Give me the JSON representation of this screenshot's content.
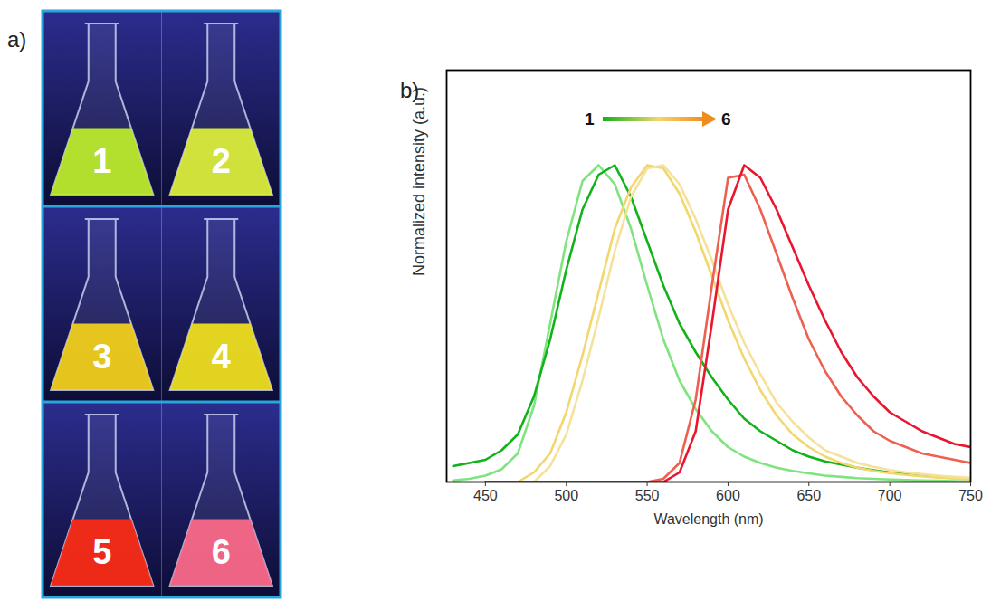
{
  "panel_a": {
    "label": "a)",
    "samples": [
      {
        "label": "1",
        "color": "#bff02a"
      },
      {
        "label": "2",
        "color": "#e0f23a"
      },
      {
        "label": "3",
        "color": "#f7d21a"
      },
      {
        "label": "4",
        "color": "#f3e31c"
      },
      {
        "label": "5",
        "color": "#ff2a14"
      },
      {
        "label": "6",
        "color": "#ff6a8a"
      }
    ]
  },
  "chart_data": {
    "type": "line",
    "panel_label": "b)",
    "annotation": {
      "from": "1",
      "to": "6"
    },
    "xlabel": "Wavelength (nm)",
    "ylabel": "Normalized intensity (a.u.)",
    "x": [
      430,
      440,
      450,
      460,
      470,
      480,
      490,
      500,
      510,
      520,
      530,
      540,
      550,
      560,
      570,
      580,
      590,
      600,
      610,
      620,
      630,
      640,
      650,
      660,
      670,
      680,
      690,
      700,
      710,
      720,
      730,
      740,
      750
    ],
    "series": [
      {
        "color": "#7fe37f",
        "values": [
          0.005,
          0.01,
          0.02,
          0.04,
          0.09,
          0.24,
          0.5,
          0.76,
          0.95,
          1.0,
          0.94,
          0.8,
          0.62,
          0.45,
          0.32,
          0.23,
          0.16,
          0.11,
          0.08,
          0.06,
          0.045,
          0.035,
          0.027,
          0.02,
          0.016,
          0.012,
          0.01,
          0.008,
          0.006,
          0.005,
          0.004,
          0.003,
          0.002
        ]
      },
      {
        "color": "#12b21a",
        "values": [
          0.05,
          0.06,
          0.07,
          0.1,
          0.15,
          0.27,
          0.45,
          0.67,
          0.86,
          0.97,
          1.0,
          0.9,
          0.76,
          0.62,
          0.5,
          0.41,
          0.33,
          0.26,
          0.2,
          0.16,
          0.13,
          0.1,
          0.08,
          0.065,
          0.055,
          0.045,
          0.037,
          0.03,
          0.025,
          0.02,
          0.016,
          0.013,
          0.01
        ]
      },
      {
        "color": "#f2d66e",
        "values": [
          null,
          null,
          null,
          null,
          0.0,
          0.03,
          0.09,
          0.22,
          0.4,
          0.6,
          0.8,
          0.93,
          1.0,
          0.99,
          0.91,
          0.79,
          0.65,
          0.51,
          0.39,
          0.29,
          0.21,
          0.15,
          0.11,
          0.08,
          0.06,
          0.045,
          0.035,
          0.028,
          0.022,
          0.018,
          0.014,
          0.011,
          0.009
        ]
      },
      {
        "color": "#f5e29a",
        "values": [
          null,
          null,
          null,
          null,
          null,
          0.0,
          0.05,
          0.15,
          0.32,
          0.52,
          0.73,
          0.9,
          0.99,
          1.0,
          0.94,
          0.83,
          0.7,
          0.56,
          0.44,
          0.34,
          0.25,
          0.19,
          0.14,
          0.1,
          0.08,
          0.06,
          0.048,
          0.038,
          0.03,
          0.025,
          0.02,
          0.016,
          0.013
        ]
      },
      {
        "color": "#ee6050",
        "values": [
          null,
          null,
          0.0,
          0.0,
          0.0,
          0.0,
          0.0,
          0.0,
          0.0,
          0.0,
          0.0,
          0.0,
          0.0,
          0.01,
          0.06,
          0.26,
          0.62,
          0.96,
          0.97,
          0.86,
          0.72,
          0.58,
          0.45,
          0.35,
          0.27,
          0.21,
          0.16,
          0.13,
          0.11,
          0.09,
          0.08,
          0.07,
          0.06
        ]
      },
      {
        "color": "#e8162e",
        "values": [
          null,
          null,
          0.0,
          0.0,
          0.0,
          0.0,
          0.0,
          0.0,
          0.0,
          0.0,
          0.0,
          0.0,
          0.0,
          0.0,
          0.03,
          0.16,
          0.5,
          0.86,
          1.0,
          0.96,
          0.86,
          0.74,
          0.62,
          0.51,
          0.41,
          0.33,
          0.27,
          0.22,
          0.19,
          0.16,
          0.14,
          0.12,
          0.11
        ]
      }
    ],
    "xlim": [
      426,
      750
    ],
    "xticks": [
      450,
      500,
      550,
      600,
      650,
      700,
      750
    ],
    "ylim": [
      0,
      1.3
    ],
    "tick_labels": "x",
    "grid": false
  }
}
